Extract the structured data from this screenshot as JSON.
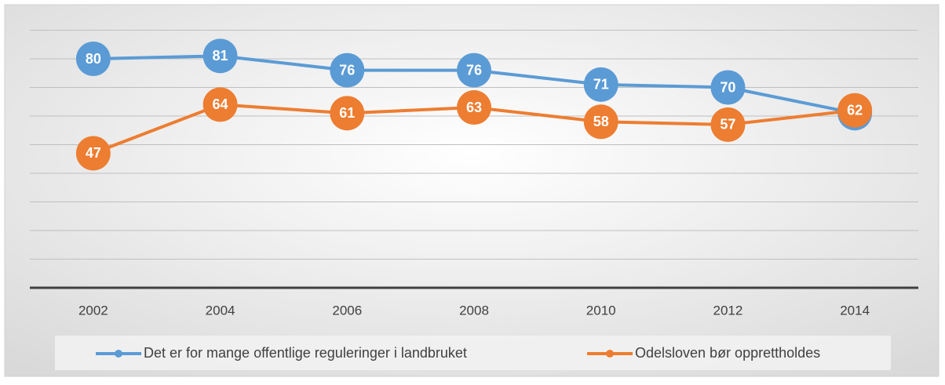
{
  "chart_data": {
    "type": "line",
    "categories": [
      "2002",
      "2004",
      "2006",
      "2008",
      "2010",
      "2012",
      "2014"
    ],
    "series": [
      {
        "name": "Det er for mange offentlige reguleringer i landbruket",
        "color": "#5b9bd5",
        "values": [
          80,
          81,
          76,
          76,
          71,
          70,
          61
        ]
      },
      {
        "name": "Odelsloven bør opprettholdes",
        "color": "#ed7d31",
        "values": [
          47,
          64,
          61,
          63,
          58,
          57,
          62
        ]
      }
    ],
    "ylim": [
      0,
      90
    ],
    "yticks": [
      0,
      10,
      20,
      30,
      40,
      50,
      60,
      70,
      80,
      90
    ],
    "grid": true,
    "legend": "bottom"
  }
}
